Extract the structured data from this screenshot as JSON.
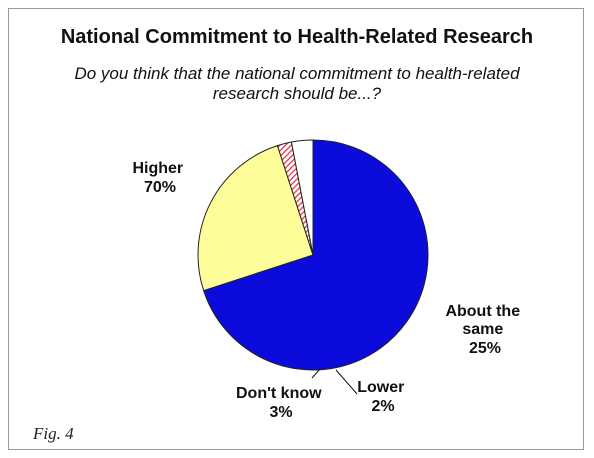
{
  "chart_data": {
    "type": "pie",
    "title": "National Commitment to Health-Related Research",
    "subtitle": "Do you think that the national commitment to health-related research should be...?",
    "slices": [
      {
        "label": "Higher",
        "value": 70,
        "value_label": "70%",
        "color": "#0b0bdc"
      },
      {
        "label": "About the same",
        "value": 25,
        "value_label": "25%",
        "color": "#fdfd9a"
      },
      {
        "label": "Lower",
        "value": 2,
        "value_label": "2%",
        "color": "#e02a3a",
        "pattern": "hatched"
      },
      {
        "label": "Don't know",
        "value": 3,
        "value_label": "3%",
        "color": "#ffffff"
      }
    ]
  },
  "labels": {
    "higher": [
      "Higher",
      "70%"
    ],
    "about_same": [
      "About the",
      "same",
      "25%"
    ],
    "lower": [
      "Lower",
      "2%"
    ],
    "dont_know": [
      "Don't know",
      "3%"
    ]
  },
  "figure_caption": "Fig. 4"
}
